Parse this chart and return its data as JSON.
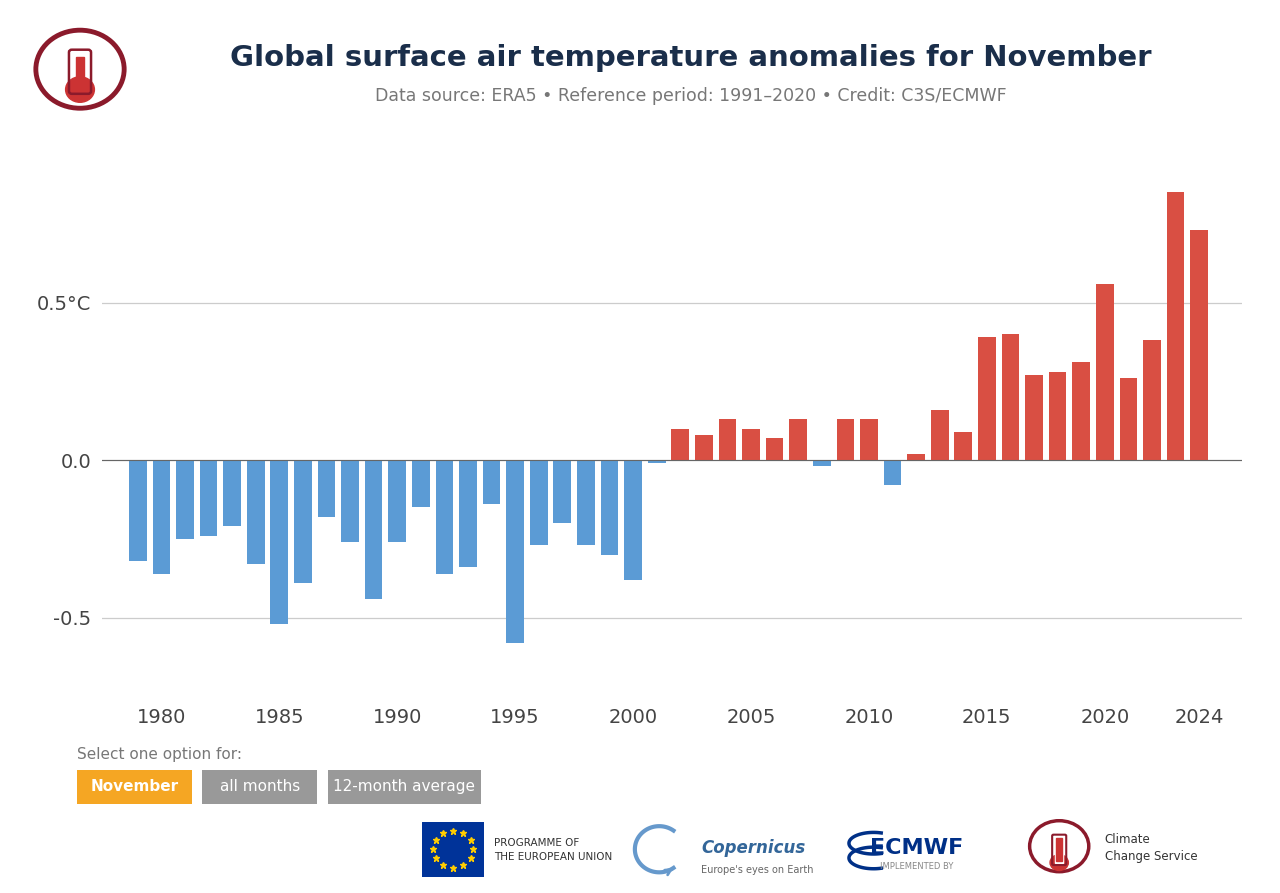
{
  "title": "Global surface air temperature anomalies for November",
  "subtitle": "Data source: ERA5 • Reference period: 1991–2020 • Credit: C3S/ECMWF",
  "years": [
    1979,
    1980,
    1981,
    1982,
    1983,
    1984,
    1985,
    1986,
    1987,
    1988,
    1989,
    1990,
    1991,
    1992,
    1993,
    1994,
    1995,
    1996,
    1997,
    1998,
    1999,
    2000,
    2001,
    2002,
    2003,
    2004,
    2005,
    2006,
    2007,
    2008,
    2009,
    2010,
    2011,
    2012,
    2013,
    2014,
    2015,
    2016,
    2017,
    2018,
    2019,
    2020,
    2021,
    2022,
    2023,
    2024
  ],
  "values": [
    -0.32,
    -0.36,
    -0.25,
    -0.24,
    -0.21,
    -0.33,
    -0.52,
    -0.39,
    -0.18,
    -0.26,
    -0.44,
    -0.26,
    -0.15,
    -0.36,
    -0.34,
    -0.14,
    -0.58,
    -0.27,
    -0.2,
    -0.27,
    -0.3,
    -0.38,
    -0.01,
    0.1,
    0.08,
    0.13,
    0.1,
    0.07,
    0.13,
    -0.02,
    0.13,
    0.13,
    -0.08,
    0.02,
    0.16,
    0.09,
    0.39,
    0.4,
    0.27,
    0.28,
    0.31,
    0.56,
    0.26,
    0.38,
    0.85,
    0.73
  ],
  "color_positive": "#d94f43",
  "color_negative": "#5b9bd5",
  "ylim": [
    -0.75,
    0.95
  ],
  "bg_color": "#ffffff",
  "grid_color": "#cccccc",
  "bar_width": 0.75,
  "tick_color": "#444444",
  "title_color": "#1a2e4a",
  "subtitle_color": "#777777",
  "select_label": "Select one option for:",
  "button_november": "November",
  "button_all_months": "all months",
  "button_12month": "12-month average",
  "button_nov_color": "#f5a623",
  "button_other_color": "#999999",
  "xticks": [
    1980,
    1985,
    1990,
    1995,
    2000,
    2005,
    2010,
    2015,
    2020,
    2024
  ],
  "xtick_labels": [
    "1980",
    "1985",
    "1990",
    "1995",
    "2000",
    "2005",
    "2010",
    "2015",
    "2020",
    "2024"
  ],
  "yticks": [
    -0.5,
    0.0,
    0.5
  ],
  "ytick_labels": [
    "-0.5",
    "0.0",
    "0.5°C"
  ]
}
